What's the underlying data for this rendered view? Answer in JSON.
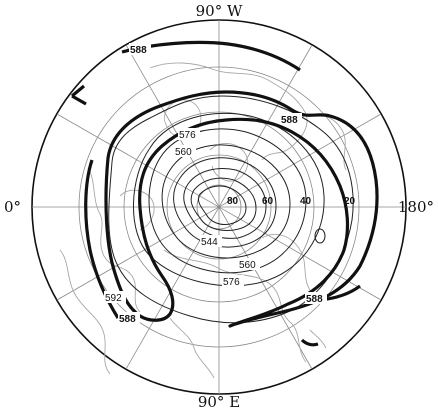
{
  "edge_labels": {
    "top": "90° W",
    "bottom": "90° E",
    "left": "0°",
    "right": "180°"
  },
  "latitude_labels": [
    "80",
    "60",
    "40",
    "20"
  ],
  "contour_labels": {
    "thick": [
      "588",
      "588",
      "588",
      "588"
    ],
    "thin": [
      "576",
      "560",
      "544",
      "560",
      "576",
      "592"
    ]
  },
  "colors": {
    "contour": "#111111",
    "grid": "#8a8a8a",
    "coastline": "#a8a8a8"
  }
}
